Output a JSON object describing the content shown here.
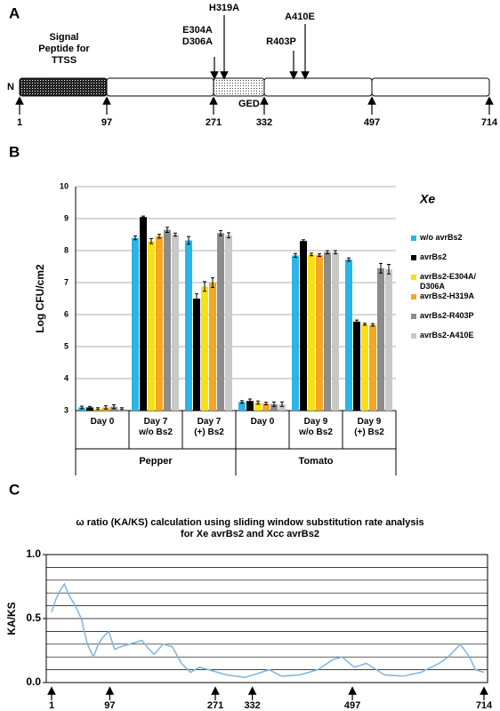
{
  "panel_labels": [
    "A",
    "B",
    "C"
  ],
  "domain_map": {
    "n_terminus": "N",
    "signal_peptide": "Signal\nPeptide for\nTTSS",
    "ged": "GED",
    "positions": [
      1,
      97,
      271,
      332,
      497,
      714
    ],
    "mutations": [
      "E304A\nD306A",
      "H319A",
      "R403P",
      "A410E"
    ]
  },
  "chart_data": [
    {
      "type": "bar",
      "ylabel": "Log CFU/cm2",
      "ylim": [
        3,
        10
      ],
      "yticks": [
        3,
        4,
        5,
        6,
        7,
        8,
        9,
        10
      ],
      "grid": true,
      "categories": [
        "Day 0",
        "Day 7\nw/o Bs2",
        "Day 7\n(+) Bs2",
        "Day 0",
        "Day 9\nw/o Bs2",
        "Day 9\n(+) Bs2"
      ],
      "group_labels": [
        "Pepper",
        "Tomato"
      ],
      "legend_title": "Xe",
      "series": [
        {
          "name": "w/o avrBs2",
          "color": "#29b6e6",
          "values": [
            3.1,
            8.4,
            8.32,
            3.27,
            7.85,
            7.72
          ],
          "errors": [
            0.04,
            0.06,
            0.12,
            0.04,
            0.06,
            0.05
          ]
        },
        {
          "name": "avrBs2",
          "color": "#000000",
          "values": [
            3.1,
            9.05,
            6.5,
            3.3,
            8.3,
            5.78
          ],
          "errors": [
            0.03,
            0.03,
            0.15,
            0.06,
            0.04,
            0.05
          ]
        },
        {
          "name": "avrBs2-E304A/ D306A",
          "color": "#f7e017",
          "values": [
            3.06,
            8.3,
            6.88,
            3.25,
            7.88,
            5.7
          ],
          "errors": [
            0.03,
            0.08,
            0.15,
            0.05,
            0.04,
            0.03
          ]
        },
        {
          "name": "avrBs2-H319A",
          "color": "#f5a623",
          "values": [
            3.1,
            8.45,
            7.0,
            3.22,
            7.86,
            5.68
          ],
          "errors": [
            0.05,
            0.06,
            0.15,
            0.04,
            0.04,
            0.04
          ]
        },
        {
          "name": "avrBs2-R403P",
          "color": "#8c8c8c",
          "values": [
            3.12,
            8.65,
            8.55,
            3.2,
            7.95,
            7.45
          ],
          "errors": [
            0.06,
            0.08,
            0.08,
            0.07,
            0.05,
            0.15
          ]
        },
        {
          "name": "avrBs2-A410E",
          "color": "#c8c8c8",
          "values": [
            3.06,
            8.5,
            8.48,
            3.2,
            7.95,
            7.42
          ],
          "errors": [
            0.03,
            0.05,
            0.08,
            0.07,
            0.05,
            0.15
          ]
        }
      ]
    },
    {
      "type": "line",
      "title": "ω ratio (KA/KS) calculation using sliding window substitution rate analysis\nfor Xe avrBs2 and Xcc avrBs2",
      "ylabel": "KA/KS",
      "ylim": [
        0,
        1
      ],
      "yticks": [
        {
          "value": 0,
          "label": "0.0"
        },
        {
          "value": 0.5,
          "label": "0.5"
        },
        {
          "value": 1,
          "label": "1.0"
        }
      ],
      "gridlines": [
        0.1,
        0.2,
        0.3,
        0.4,
        0.5,
        0.6,
        0.7,
        0.8,
        0.9
      ],
      "xlim": [
        1,
        714
      ],
      "xticks": [
        1,
        97,
        271,
        332,
        497,
        714
      ],
      "color": "#7fb3e0",
      "x": [
        1,
        8,
        15,
        22,
        30,
        40,
        50,
        60,
        70,
        78,
        85,
        95,
        105,
        115,
        130,
        150,
        160,
        170,
        185,
        200,
        215,
        230,
        245,
        260,
        290,
        320,
        340,
        360,
        380,
        410,
        440,
        465,
        480,
        500,
        520,
        550,
        580,
        610,
        640,
        655,
        665,
        675,
        690,
        700,
        714
      ],
      "values": [
        0.55,
        0.65,
        0.72,
        0.77,
        0.68,
        0.6,
        0.5,
        0.3,
        0.2,
        0.3,
        0.35,
        0.4,
        0.26,
        0.28,
        0.3,
        0.33,
        0.27,
        0.22,
        0.3,
        0.28,
        0.15,
        0.08,
        0.12,
        0.1,
        0.06,
        0.04,
        0.07,
        0.1,
        0.05,
        0.06,
        0.1,
        0.18,
        0.2,
        0.12,
        0.15,
        0.06,
        0.05,
        0.08,
        0.15,
        0.2,
        0.25,
        0.3,
        0.2,
        0.1,
        0.08
      ]
    }
  ]
}
